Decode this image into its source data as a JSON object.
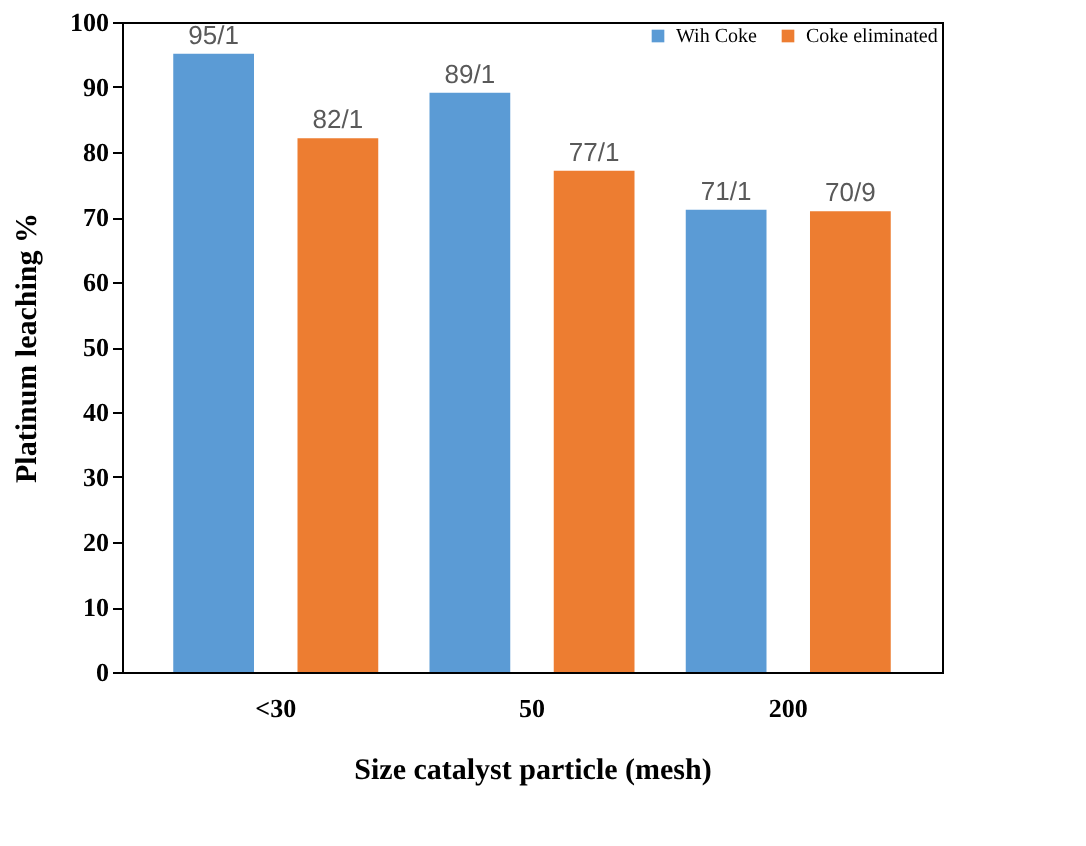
{
  "chart_data": {
    "type": "bar",
    "xlabel": "Size catalyst particle (mesh)",
    "ylabel": "Platinum leaching %",
    "categories": [
      "<30",
      "50",
      "200"
    ],
    "series": [
      {
        "name": "Wih Coke",
        "color": "#5b9bd5",
        "values": [
          95.1,
          89.1,
          71.1
        ],
        "value_labels": [
          "95/1",
          "89/1",
          "71/1"
        ]
      },
      {
        "name": "Coke eliminated",
        "color": "#ed7d31",
        "values": [
          82.1,
          77.1,
          70.9
        ],
        "value_labels": [
          "82/1",
          "77/1",
          "70/9"
        ]
      }
    ],
    "ylim": [
      0,
      100
    ],
    "yticks": [
      0,
      10,
      20,
      30,
      40,
      50,
      60,
      70,
      80,
      90,
      100
    ],
    "grid": false,
    "legend": "top right"
  }
}
